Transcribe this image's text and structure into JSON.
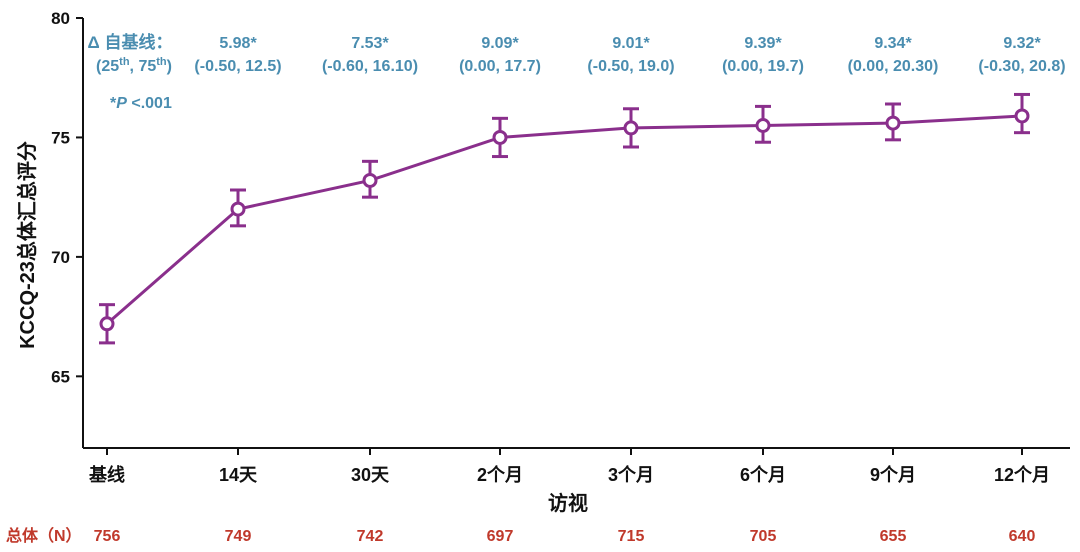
{
  "chart_data": {
    "type": "line",
    "categories": [
      "基线",
      "14天",
      "30天",
      "2个月",
      "3个月",
      "6个月",
      "9个月",
      "12个月"
    ],
    "values": [
      67.2,
      72.0,
      73.2,
      75.0,
      75.4,
      75.5,
      75.6,
      75.9
    ],
    "err_low": [
      66.4,
      71.3,
      72.5,
      74.2,
      74.6,
      74.8,
      74.9,
      75.2
    ],
    "err_high": [
      68.0,
      72.8,
      74.0,
      75.8,
      76.2,
      76.3,
      76.4,
      76.8
    ],
    "xlabel": "访视",
    "ylabel": "KCCQ-23总体汇总评分",
    "ylim": [
      62,
      80
    ],
    "yticks": [
      "65",
      "70",
      "75",
      "80"
    ],
    "series_color": "#8a2f8c",
    "annotation_color": "#4a8db0",
    "n_color": "#c0392b",
    "delta_header": {
      "line1": "Δ 自基线：",
      "line2_pre": "(25",
      "line2_sup1": "th",
      "line2_mid": ", 75",
      "line2_sup2": "th",
      "line2_post": ")",
      "pvalue_star": "*",
      "pvalue_p": "P",
      "pvalue_rest": " <.001"
    },
    "deltas": [
      "5.98*",
      "7.53*",
      "9.09*",
      "9.01*",
      "9.39*",
      "9.34*",
      "9.32*"
    ],
    "ranges": [
      "(-0.50, 12.5)",
      "(-0.60, 16.10)",
      "(0.00, 17.7)",
      "(-0.50, 19.0)",
      "(0.00, 19.7)",
      "(0.00, 20.30)",
      "(-0.30, 20.8)"
    ],
    "n_label": "总体（N）",
    "n_values": [
      "756",
      "749",
      "742",
      "697",
      "715",
      "705",
      "655",
      "640"
    ]
  }
}
